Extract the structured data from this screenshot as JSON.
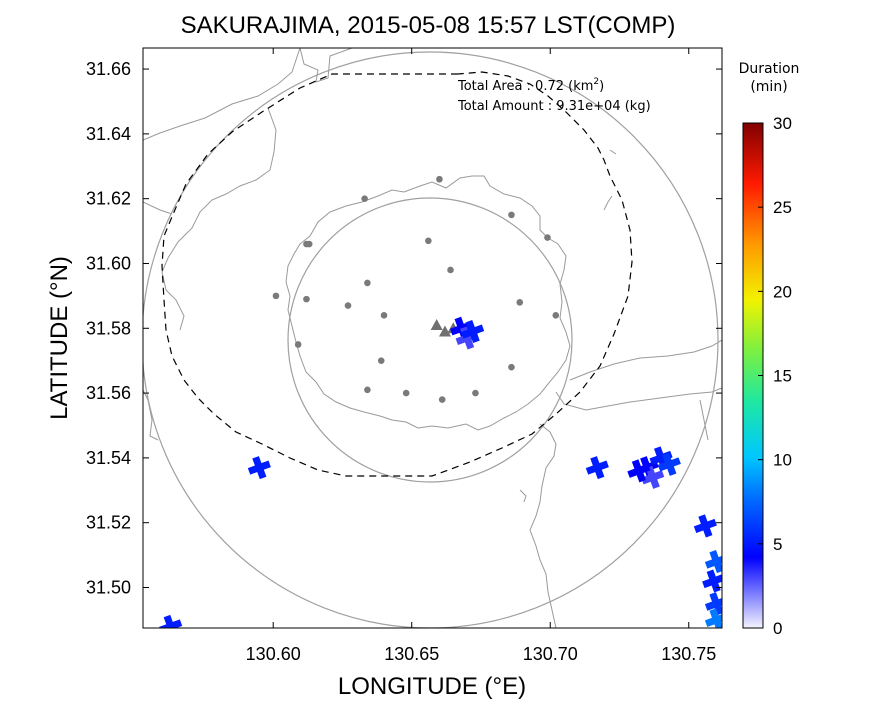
{
  "chart_data": {
    "type": "scatter",
    "title": "SAKURAJIMA, 2015-05-08 15:57 LST(COMP)",
    "xlabel": "LONGITUDE (°E)",
    "ylabel": "LATITUDE (°N)",
    "xlim": [
      130.553,
      130.762
    ],
    "ylim": [
      31.4875,
      31.6665
    ],
    "xticks": [
      "130.60",
      "130.65",
      "130.70",
      "130.75"
    ],
    "yticks": [
      "31.50",
      "31.52",
      "31.54",
      "31.56",
      "31.58",
      "31.60",
      "31.62",
      "31.64",
      "31.66"
    ],
    "annotation": {
      "area_label": "Total Area   : 0.72 (km",
      "area_sup": "2",
      "area_close": ")",
      "amount_label": "Total Amount : 9.31e+04 (kg)"
    },
    "colorbar": {
      "title_line1": "Duration",
      "title_line2": "(min)",
      "range": [
        0,
        30
      ],
      "ticks": [
        "0",
        "5",
        "10",
        "15",
        "20",
        "25",
        "30"
      ]
    },
    "stations": [
      [
        130.66,
        31.626
      ],
      [
        130.633,
        31.62
      ],
      [
        130.686,
        31.615
      ],
      [
        130.699,
        31.608
      ],
      [
        130.613,
        31.606
      ],
      [
        130.612,
        31.606
      ],
      [
        130.656,
        31.607
      ],
      [
        130.664,
        31.598
      ],
      [
        130.601,
        31.59
      ],
      [
        130.612,
        31.589
      ],
      [
        130.689,
        31.588
      ],
      [
        130.627,
        31.587
      ],
      [
        130.634,
        31.594
      ],
      [
        130.64,
        31.584
      ],
      [
        130.702,
        31.584
      ],
      [
        130.609,
        31.575
      ],
      [
        130.639,
        31.57
      ],
      [
        130.686,
        31.568
      ],
      [
        130.634,
        31.561
      ],
      [
        130.648,
        31.56
      ],
      [
        130.673,
        31.56
      ],
      [
        130.661,
        31.558
      ]
    ],
    "vents": [
      [
        130.659,
        31.581
      ],
      [
        130.662,
        31.579
      ],
      [
        130.665,
        31.58
      ]
    ],
    "ashfall_cells": [
      {
        "lon": 130.668,
        "lat": 31.58,
        "duration": 4
      },
      {
        "lon": 130.67,
        "lat": 31.577,
        "duration": 3
      },
      {
        "lon": 130.672,
        "lat": 31.579,
        "duration": 5
      },
      {
        "lon": 130.595,
        "lat": 31.537,
        "duration": 5
      },
      {
        "lon": 130.717,
        "lat": 31.537,
        "duration": 5
      },
      {
        "lon": 130.735,
        "lat": 31.537,
        "duration": 4
      },
      {
        "lon": 130.74,
        "lat": 31.54,
        "duration": 5
      },
      {
        "lon": 130.737,
        "lat": 31.534,
        "duration": 3
      },
      {
        "lon": 130.743,
        "lat": 31.538,
        "duration": 6
      },
      {
        "lon": 130.732,
        "lat": 31.536,
        "duration": 4
      },
      {
        "lon": 130.756,
        "lat": 31.519,
        "duration": 5
      },
      {
        "lon": 130.76,
        "lat": 31.508,
        "duration": 7
      },
      {
        "lon": 130.759,
        "lat": 31.502,
        "duration": 5
      },
      {
        "lon": 130.76,
        "lat": 31.495,
        "duration": 6
      },
      {
        "lon": 130.76,
        "lat": 31.49,
        "duration": 8
      },
      {
        "lon": 130.563,
        "lat": 31.488,
        "duration": 5
      }
    ]
  }
}
